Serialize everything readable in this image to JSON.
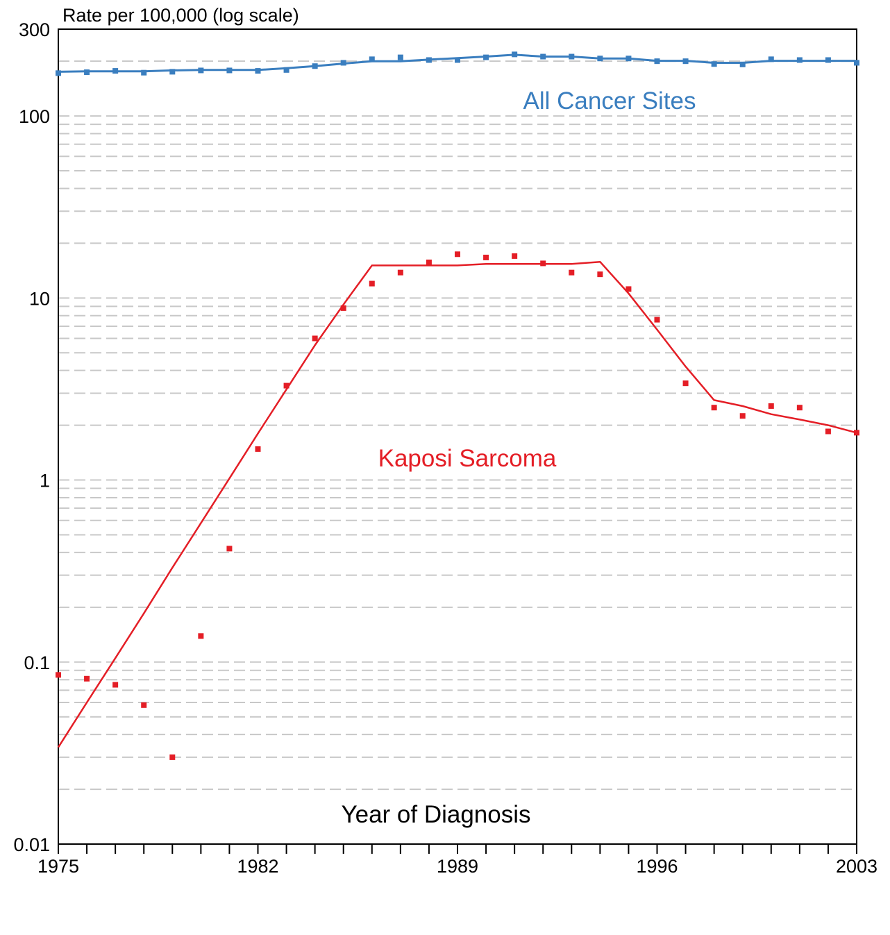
{
  "chart_data": {
    "type": "line",
    "ylabel": "Rate per 100,000 (log scale)",
    "xlabel": "Year of Diagnosis",
    "y_scale": "log",
    "ylim": [
      0.01,
      300
    ],
    "xlim": [
      1975,
      2003
    ],
    "y_ticks": [
      {
        "value": 300,
        "label": "300"
      },
      {
        "value": 100,
        "label": "100"
      },
      {
        "value": 10,
        "label": "10"
      },
      {
        "value": 1,
        "label": "1"
      },
      {
        "value": 0.1,
        "label": "0.1"
      },
      {
        "value": 0.01,
        "label": "0.01"
      }
    ],
    "x_ticks": [
      {
        "value": 1975,
        "label": "1975"
      },
      {
        "value": 1982,
        "label": "1982"
      },
      {
        "value": 1989,
        "label": "1989"
      },
      {
        "value": 1996,
        "label": "1996"
      },
      {
        "value": 2003,
        "label": "2003"
      }
    ],
    "grid": "dashed horizontal lines at log minor steps",
    "series": [
      {
        "name": "All Cancer Sites",
        "color": "#3a7ebf",
        "marker": "square",
        "x": [
          1975,
          1976,
          1977,
          1978,
          1979,
          1980,
          1981,
          1982,
          1983,
          1984,
          1985,
          1986,
          1987,
          1988,
          1989,
          1990,
          1991,
          1992,
          1993,
          1994,
          1995,
          1996,
          1997,
          1998,
          1999,
          2000,
          2001,
          2002,
          2003
        ],
        "points": [
          172,
          174,
          177,
          173,
          175,
          178,
          178,
          177,
          179,
          188,
          196,
          205,
          210,
          203,
          203,
          210,
          218,
          212,
          212,
          207,
          207,
          200,
          200,
          193,
          192,
          205,
          203,
          203,
          196
        ],
        "trend": [
          175,
          176,
          176,
          176,
          178,
          179,
          179,
          179,
          183,
          188,
          194,
          200,
          200,
          204,
          208,
          212,
          217,
          212,
          212,
          207,
          207,
          201,
          201,
          196,
          196,
          201,
          201,
          201,
          201
        ]
      },
      {
        "name": "Kaposi Sarcoma",
        "color": "#e41e26",
        "marker": "square",
        "x": [
          1975,
          1976,
          1977,
          1978,
          1979,
          1980,
          1981,
          1982,
          1983,
          1984,
          1985,
          1986,
          1987,
          1988,
          1989,
          1990,
          1991,
          1992,
          1993,
          1994,
          1995,
          1996,
          1997,
          1998,
          1999,
          2000,
          2001,
          2002,
          2003
        ],
        "points": [
          0.085,
          0.081,
          0.075,
          0.058,
          0.03,
          0.139,
          0.42,
          1.48,
          3.3,
          6.0,
          8.8,
          12.0,
          13.8,
          15.7,
          17.4,
          16.7,
          17.0,
          15.5,
          13.8,
          13.5,
          11.2,
          7.6,
          3.4,
          2.5,
          2.25,
          2.55,
          2.5,
          1.85,
          1.82
        ],
        "trend": [
          0.034,
          0.06,
          0.105,
          0.185,
          0.33,
          0.58,
          1.02,
          1.8,
          3.15,
          5.5,
          9.2,
          15.1,
          15.1,
          15.1,
          15.1,
          15.4,
          15.4,
          15.4,
          15.4,
          15.8,
          10.6,
          6.7,
          4.2,
          2.75,
          2.55,
          2.3,
          2.15,
          2.0,
          1.82
        ]
      }
    ]
  }
}
